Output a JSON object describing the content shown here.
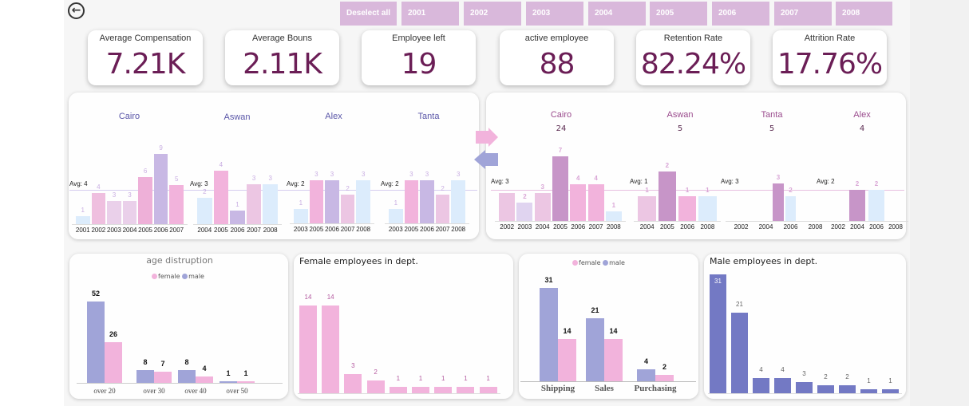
{
  "nav": {
    "back_icon": "arrow-left-circle-icon"
  },
  "slicer": {
    "items": [
      "Deselect all",
      "2001",
      "2002",
      "2003",
      "2004",
      "2005",
      "2006",
      "2007",
      "2008"
    ],
    "color": "#d9b8db"
  },
  "kpis": [
    {
      "title": "Average Compensation",
      "value": "7.21K"
    },
    {
      "title": "Average Bouns",
      "value": "2.11K"
    },
    {
      "title": "Employee left",
      "value": "19"
    },
    {
      "title": "active employee",
      "value": "88"
    },
    {
      "title": "Retention Rate",
      "value": "82.24%"
    },
    {
      "title": "Attrition Rate",
      "value": "17.76%"
    }
  ],
  "colors": {
    "kpi_value": "#6b1e56",
    "pink": "#f2b3dc",
    "lavender": "#c8b8e4",
    "light_blue": "#dcecfc",
    "light_pink": "#ecc6e3",
    "mauve": "#c795c8",
    "male": "#a0a4d8",
    "male_dark": "#7379c4"
  },
  "chart_data": [
    {
      "type": "bar",
      "panel": "left",
      "groups": [
        {
          "title": "Cairo",
          "avg_label": "Avg: 4",
          "ticks": [
            "2001",
            "2002",
            "2003",
            "2004",
            "2005",
            "2006",
            "2007"
          ],
          "bars": [
            {
              "x": "2001",
              "v": 1,
              "c": "#dcecfc"
            },
            {
              "x": "2002",
              "v": 4,
              "c": "#efbfdf"
            },
            {
              "x": "2003",
              "v": 3,
              "c": "#ead0ea"
            },
            {
              "x": "2004",
              "v": 3,
              "c": "#ead0ea"
            },
            {
              "x": "2005",
              "v": 6,
              "c": "#eeb0d8"
            },
            {
              "x": "2006",
              "v": 9,
              "c": "#c8b8e4"
            },
            {
              "x": "2007",
              "v": 5,
              "c": "#f2b3dc"
            }
          ]
        },
        {
          "title": "Aswan",
          "avg_label": "Avg: 3",
          "ticks": [
            "2004",
            "2005",
            "2006",
            "2007",
            "2008"
          ],
          "bars": [
            {
              "x": "2004",
              "v": 2,
              "c": "#dcecfc"
            },
            {
              "x": "2005",
              "v": 4,
              "c": "#f2b3dc"
            },
            {
              "x": "2006",
              "v": 1,
              "c": "#c8b8e4"
            },
            {
              "x": "2007",
              "v": 3,
              "c": "#ecc6e3"
            },
            {
              "x": "2008",
              "v": 3,
              "c": "#dcecfc"
            }
          ]
        },
        {
          "title": "Alex",
          "avg_label": "Avg: 2",
          "ticks": [
            "2003",
            "2005",
            "2006",
            "2007",
            "2008"
          ],
          "bars": [
            {
              "x": "2003",
              "v": 1,
              "c": "#dcecfc"
            },
            {
              "x": "2005",
              "v": 3,
              "c": "#f2b3dc"
            },
            {
              "x": "2006",
              "v": 3,
              "c": "#c8b8e4"
            },
            {
              "x": "2007",
              "v": 2,
              "c": "#ecc6e3"
            },
            {
              "x": "2008",
              "v": 3,
              "c": "#dcecfc"
            }
          ]
        },
        {
          "title": "Tanta",
          "avg_label": "Avg: 2",
          "ticks": [
            "2003",
            "2005",
            "2006",
            "2007",
            "2008"
          ],
          "bars": [
            {
              "x": "2003",
              "v": 1,
              "c": "#dcecfc"
            },
            {
              "x": "2005",
              "v": 3,
              "c": "#f2b3dc"
            },
            {
              "x": "2006",
              "v": 3,
              "c": "#c8b8e4"
            },
            {
              "x": "2007",
              "v": 2,
              "c": "#ecc6e3"
            },
            {
              "x": "2008",
              "v": 3,
              "c": "#dcecfc"
            }
          ]
        }
      ]
    },
    {
      "type": "bar",
      "panel": "right",
      "groups": [
        {
          "title": "Cairo",
          "total": "24",
          "avg_label": "Avg: 3",
          "ticks": [
            "2002",
            "2003",
            "2004",
            "2005",
            "2006",
            "2007",
            "2008"
          ],
          "bars": [
            {
              "x": "2002",
              "v": 3,
              "c": "#ecc6e3",
              "hide_label": true
            },
            {
              "x": "2003",
              "v": 2,
              "c": "#e0d4f0"
            },
            {
              "x": "2004",
              "v": 3,
              "c": "#ecc6e3"
            },
            {
              "x": "2005",
              "v": 7,
              "c": "#c795c8"
            },
            {
              "x": "2006",
              "v": 4,
              "c": "#f2b3dc"
            },
            {
              "x": "2007",
              "v": 4,
              "c": "#f2b3dc"
            },
            {
              "x": "2008",
              "v": 1,
              "c": "#dcecfc"
            }
          ]
        },
        {
          "title": "Aswan",
          "total": "5",
          "avg_label": "Avg: 1",
          "ticks": [
            "2004",
            "2005",
            "2006",
            "2008"
          ],
          "bars": [
            {
              "x": "2004",
              "v": 1,
              "c": "#ecc6e3"
            },
            {
              "x": "2005",
              "v": 2,
              "c": "#c795c8"
            },
            {
              "x": "2006",
              "v": 1,
              "c": "#f2b3dc"
            },
            {
              "x": "2008",
              "v": 1,
              "c": "#dcecfc"
            }
          ]
        },
        {
          "title": "Tanta",
          "total": "5",
          "avg_label": "Avg: 3",
          "ticks": [
            "2002",
            "2004",
            "2006",
            "2008"
          ],
          "bars": [
            {
              "x": "2005",
              "v": 3,
              "c": "#c795c8"
            },
            {
              "x": "2006",
              "v": 2,
              "c": "#dcecfc"
            }
          ]
        },
        {
          "title": "Alex",
          "total": "4",
          "avg_label": "Avg: 2",
          "ticks": [
            "2002",
            "2004",
            "2006",
            "2008"
          ],
          "bars": [
            {
              "x": "2004",
              "v": 2,
              "c": "#c795c8"
            },
            {
              "x": "2006",
              "v": 2,
              "c": "#dcecfc"
            }
          ]
        }
      ]
    },
    {
      "type": "bar",
      "title": "age distruption",
      "legend": [
        "female",
        "male"
      ],
      "categories": [
        "over 20",
        "over 30",
        "over 40",
        "over 50"
      ],
      "series": [
        {
          "name": "male",
          "values": [
            52,
            8,
            8,
            1
          ],
          "color": "#a0a4d8"
        },
        {
          "name": "female",
          "values": [
            26,
            7,
            4,
            1
          ],
          "color": "#f2b3dc"
        }
      ]
    },
    {
      "type": "bar",
      "title": "Female employees in dept.",
      "values": [
        14,
        14,
        3,
        2,
        1,
        1,
        1,
        1,
        1
      ],
      "color": "#f2b3dc"
    },
    {
      "type": "bar",
      "title": "",
      "legend": [
        "female",
        "male"
      ],
      "categories": [
        "Shipping",
        "Sales",
        "Purchasing"
      ],
      "series": [
        {
          "name": "male",
          "values": [
            31,
            21,
            4
          ],
          "color": "#a0a4d8"
        },
        {
          "name": "female",
          "values": [
            14,
            14,
            2
          ],
          "color": "#f2b3dc"
        }
      ]
    },
    {
      "type": "bar",
      "title": "Male employees in dept.",
      "values": [
        31,
        21,
        4,
        4,
        3,
        2,
        2,
        1,
        1
      ],
      "color": "#7379c4"
    }
  ]
}
